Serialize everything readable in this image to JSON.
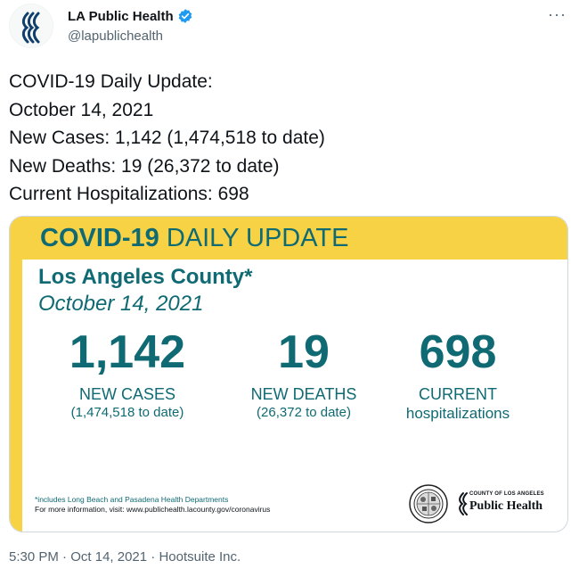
{
  "author": {
    "display_name": "LA Public Health",
    "handle": "@lapublichealth",
    "verified": true
  },
  "more_icon": "more-options-icon",
  "tweet_lines": [
    "COVID-19 Daily Update:",
    "October 14, 2021",
    "New Cases: 1,142 (1,474,518 to date)",
    "New Deaths: 19 (26,372 to date)",
    "Current Hospitalizations: 698"
  ],
  "card": {
    "banner_bold": "COVID-19",
    "banner_rest": " DAILY UPDATE",
    "county": "Los Angeles County*",
    "date": "October 14, 2021",
    "stats": {
      "cases": {
        "value": "1,142",
        "label": "NEW CASES",
        "sub": "(1,474,518 to date)"
      },
      "deaths": {
        "value": "19",
        "label": "NEW DEATHS",
        "sub": "(26,372 to date)"
      },
      "hospitalizations": {
        "value": "698",
        "label": "CURRENT",
        "sub": "hospitalizations"
      }
    },
    "footnote": "*includes Long Beach and Pasadena Health Departments",
    "more_info": "For more information, visit: www.publichealth.lacounty.gov/coronavirus",
    "logo_small": "COUNTY OF LOS ANGELES",
    "logo_big": "Public Health"
  },
  "meta": {
    "time": "5:30 PM",
    "separator": " · ",
    "date": "Oct 14, 2021",
    "source": "Hootsuite Inc."
  },
  "colors": {
    "teal": "#0f6a73",
    "yellow": "#f8d245",
    "verified_blue": "#1d9bf0"
  }
}
